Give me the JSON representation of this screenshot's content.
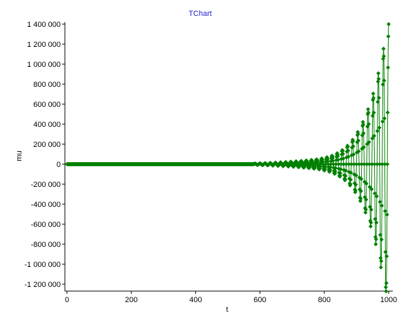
{
  "chart_data": {
    "type": "line",
    "title": "TChart",
    "xlabel": "t",
    "ylabel": "mu",
    "xlim": [
      0,
      1000
    ],
    "ylim": [
      -1200000,
      1400000
    ],
    "grid": true,
    "x_ticks": [
      0,
      200,
      400,
      600,
      800,
      1000
    ],
    "x_tick_labels": [
      "0",
      "200",
      "400",
      "600",
      "800",
      "1000"
    ],
    "y_ticks": [
      1400000,
      1200000,
      1000000,
      800000,
      600000,
      400000,
      200000,
      0,
      -200000,
      -400000,
      -600000,
      -800000,
      -1000000,
      -1200000
    ],
    "y_tick_labels": [
      "1 400 000",
      "1 200 000",
      "1 000 000",
      "800 000",
      "600 000",
      "400 000",
      "200 000",
      "0",
      "-200 000",
      "-400 000",
      "-600 000",
      "-800 000",
      "-1 000 000",
      "-1 200 000"
    ],
    "series": [
      {
        "color": "#008000",
        "marker": "diamond",
        "x_start": 0,
        "x_end": 1000,
        "oscillation_onset": 580,
        "envelope": {
          "t": [
            580,
            620,
            660,
            700,
            740,
            780,
            820,
            860,
            900,
            930,
            960,
            980,
            1000
          ],
          "amplitude": [
            5000,
            10000,
            17000,
            25000,
            36000,
            50000,
            80000,
            150000,
            300000,
            500000,
            800000,
            1100000,
            1400000
          ]
        },
        "period_approx": 16,
        "endpoints": {
          "min": -1230000,
          "max": 1400000
        }
      }
    ]
  }
}
